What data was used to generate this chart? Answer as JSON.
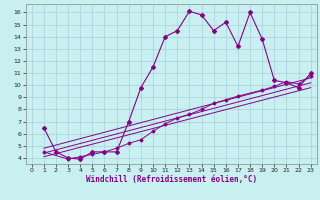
{
  "bg_color": "#c8f0f0",
  "line_color": "#880088",
  "grid_color": "#a8d0d8",
  "xlabel": "Windchill (Refroidissement éolien,°C)",
  "xlim": [
    -0.5,
    23.5
  ],
  "ylim": [
    3.5,
    16.7
  ],
  "xticks": [
    0,
    1,
    2,
    3,
    4,
    5,
    6,
    7,
    8,
    9,
    10,
    11,
    12,
    13,
    14,
    15,
    16,
    17,
    18,
    19,
    20,
    21,
    22,
    23
  ],
  "yticks": [
    4,
    5,
    6,
    7,
    8,
    9,
    10,
    11,
    12,
    13,
    14,
    15,
    16
  ],
  "main_x": [
    1,
    2,
    3,
    4,
    5,
    6,
    7,
    8,
    9,
    10,
    11,
    12,
    13,
    14,
    15,
    16,
    17,
    18,
    19,
    20,
    21,
    22,
    23
  ],
  "main_y": [
    6.5,
    4.5,
    4.0,
    3.9,
    4.5,
    4.5,
    4.5,
    7.0,
    9.8,
    11.5,
    14.0,
    14.5,
    16.1,
    15.8,
    14.5,
    15.2,
    13.2,
    16.0,
    13.8,
    10.4,
    10.2,
    9.8,
    11.0
  ],
  "mid_x": [
    1,
    3,
    4,
    5,
    6,
    7,
    8,
    9,
    10,
    11,
    12,
    13,
    14,
    15,
    16,
    17,
    19,
    20,
    21,
    22,
    23
  ],
  "mid_y": [
    4.5,
    3.9,
    4.1,
    4.3,
    4.5,
    4.8,
    5.2,
    5.5,
    6.2,
    6.8,
    7.3,
    7.6,
    8.0,
    8.5,
    8.8,
    9.1,
    9.6,
    9.9,
    10.3,
    10.1,
    10.8
  ],
  "line1_x": [
    1,
    23
  ],
  "line1_y": [
    4.1,
    9.8
  ],
  "line2_x": [
    1,
    23
  ],
  "line2_y": [
    4.4,
    10.2
  ],
  "line3_x": [
    1,
    23
  ],
  "line3_y": [
    4.8,
    10.6
  ]
}
